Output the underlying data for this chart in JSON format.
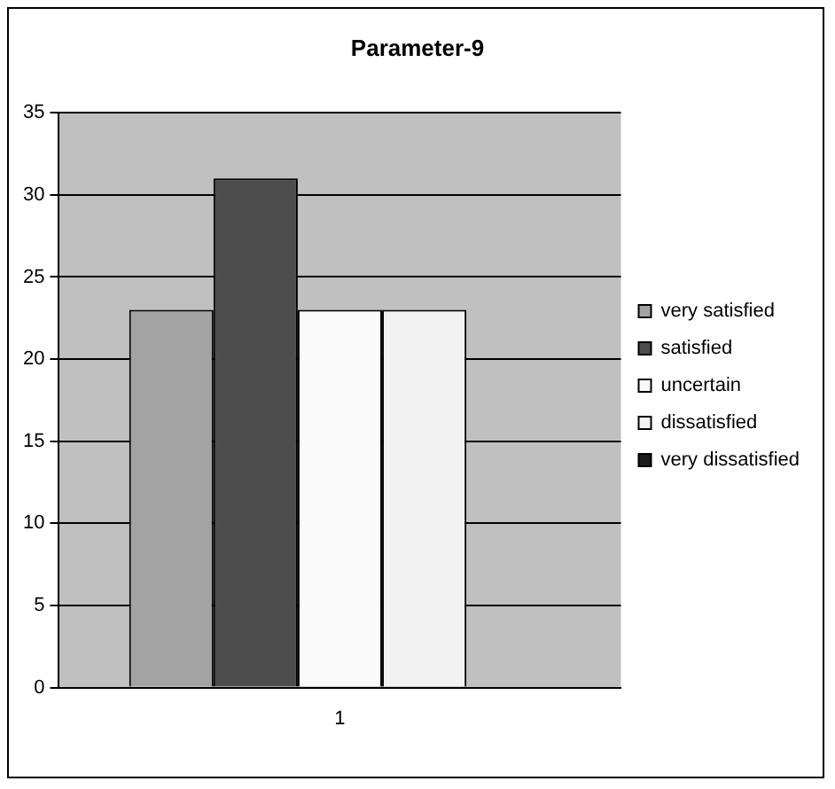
{
  "chart_data": {
    "type": "bar",
    "title": "Parameter-9",
    "categories": [
      "1"
    ],
    "series": [
      {
        "name": "very satisfied",
        "color": "#a3a3a3",
        "values": [
          23
        ]
      },
      {
        "name": "satisfied",
        "color": "#4d4d4d",
        "values": [
          31
        ]
      },
      {
        "name": "uncertain",
        "color": "#fafafa",
        "values": [
          23
        ]
      },
      {
        "name": "dissatisfied",
        "color": "#f2f2f2",
        "values": [
          23
        ]
      },
      {
        "name": "very dissatisfied",
        "color": "#1a1a1a",
        "values": [
          0
        ]
      }
    ],
    "ylim": [
      0,
      35
    ],
    "yticks": [
      0,
      5,
      10,
      15,
      20,
      25,
      30,
      35
    ],
    "grid": "y",
    "legend": "right"
  }
}
